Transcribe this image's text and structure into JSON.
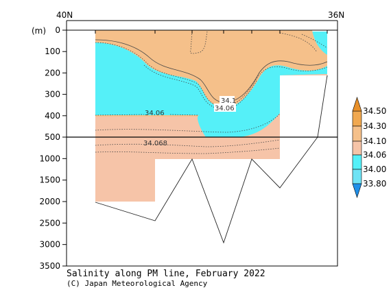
{
  "chart_data": {
    "type": "heatmap",
    "title": "Salinity along PM line, February 2022",
    "credit": "(C) Japan Meteorological Agency",
    "xlabel": "",
    "ylabel": "(m)",
    "x_tick_labels": [
      "40N",
      "36N"
    ],
    "y_ticks_upper": [
      0,
      100,
      200,
      300,
      400,
      500
    ],
    "y_ticks_lower": [
      1000,
      1500,
      2000,
      2500,
      3000,
      3500
    ],
    "y_split_depth": 500,
    "ylim": [
      0,
      3500
    ],
    "colorbar": {
      "levels": [
        33.8,
        34.0,
        34.06,
        34.1,
        34.3,
        34.5
      ],
      "labels": [
        "33.80",
        "34.00",
        "34.06",
        "34.10",
        "34.30",
        "34.50"
      ],
      "colors": {
        "lt_33.80": "#1f8fe8",
        "33.80_34.00": "#6fe3f5",
        "34.00_34.06": "#55f0f8",
        "34.06_34.10": "#f6c4a8",
        "34.10_34.30": "#f5c08a",
        "34.30_34.50": "#f0a850",
        "gt_34.50": "#e8902a"
      }
    },
    "contour_labels": [
      "34.1",
      "34.06",
      "34.06",
      "34.068"
    ],
    "station_bottom_depths_m": [
      2030,
      2450,
      1000,
      2950,
      1000,
      1680,
      500,
      200
    ]
  }
}
